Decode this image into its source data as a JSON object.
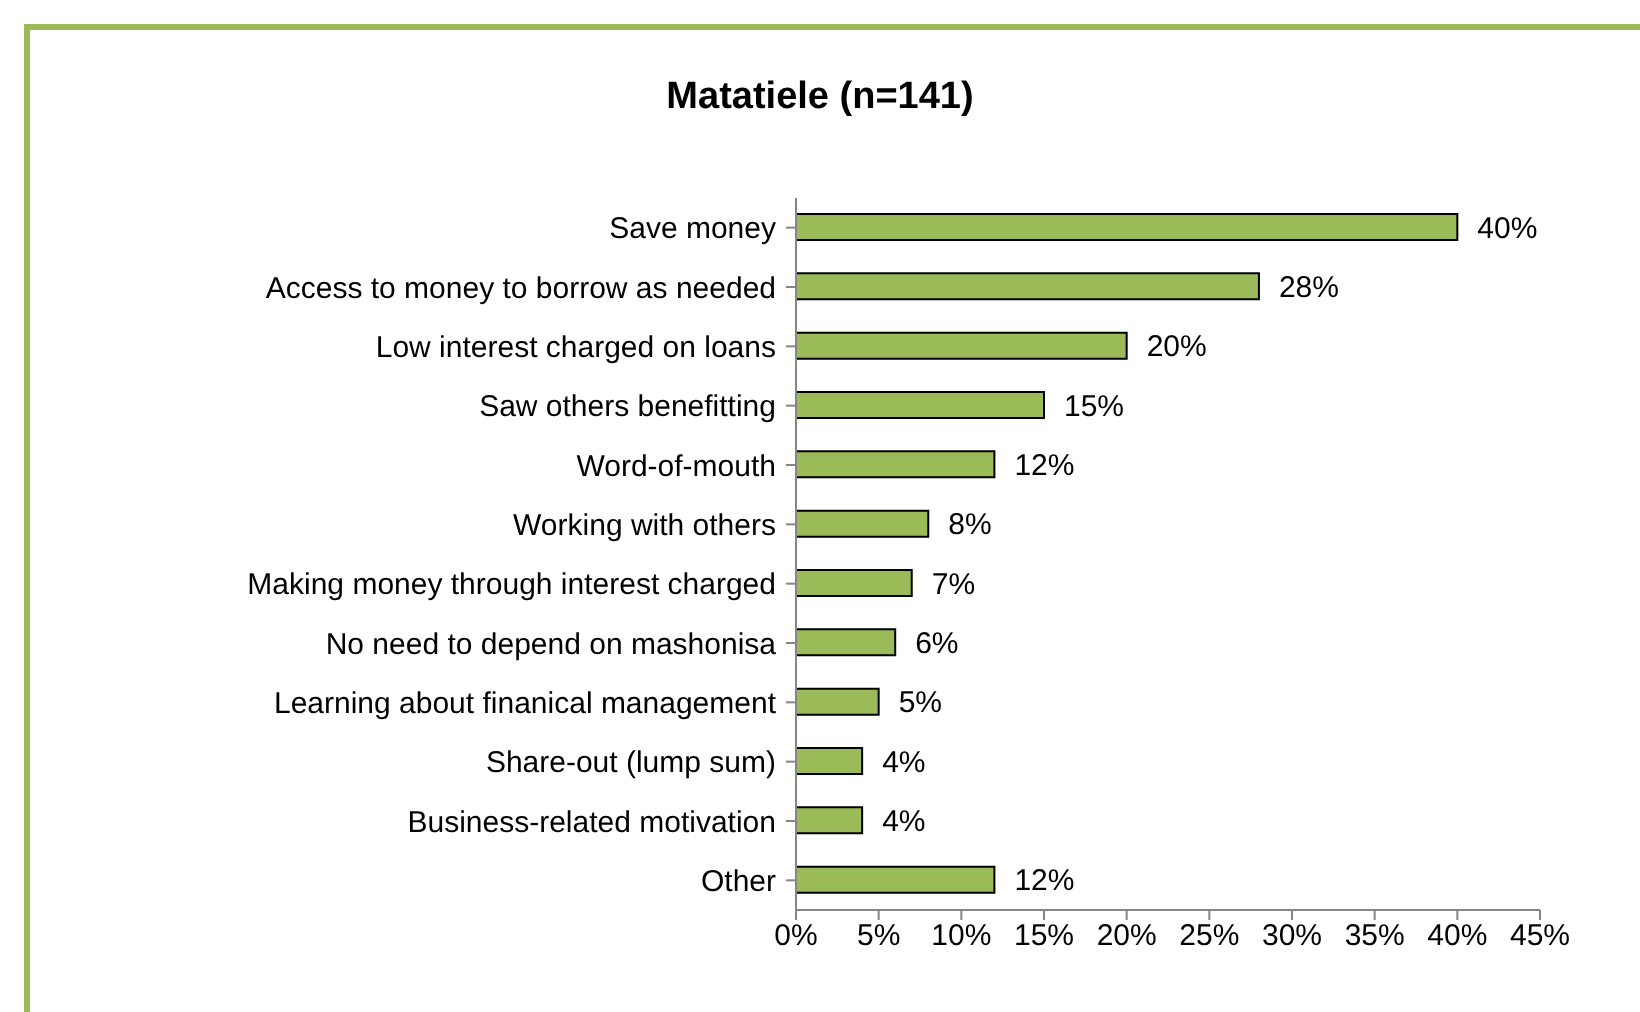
{
  "chart_data": {
    "type": "bar",
    "orientation": "horizontal",
    "title": "Matatiele (n=141)",
    "categories": [
      "Save money",
      "Access to money to borrow as needed",
      "Low interest charged on loans",
      "Saw others benefitting",
      "Word-of-mouth",
      "Working with others",
      "Making money through interest charged",
      "No need to depend on mashonisa",
      "Learning about finanical management",
      "Share-out (lump sum)",
      "Business-related motivation",
      "Other"
    ],
    "values": [
      40,
      28,
      20,
      15,
      12,
      8,
      7,
      6,
      5,
      4,
      4,
      12
    ],
    "value_labels": [
      "40%",
      "28%",
      "20%",
      "15%",
      "12%",
      "8%",
      "7%",
      "6%",
      "5%",
      "4%",
      "4%",
      "12%"
    ],
    "color": "#9bbb59",
    "xlim": [
      0,
      45
    ],
    "xticks": [
      {
        "value": 0,
        "label": "0%"
      },
      {
        "value": 5,
        "label": "5%"
      },
      {
        "value": 10,
        "label": "10%"
      },
      {
        "value": 15,
        "label": "15%"
      },
      {
        "value": 20,
        "label": "20%"
      },
      {
        "value": 25,
        "label": "25%"
      },
      {
        "value": 30,
        "label": "30%"
      },
      {
        "value": 35,
        "label": "35%"
      },
      {
        "value": 40,
        "label": "40%"
      },
      {
        "value": 45,
        "label": "45%"
      }
    ],
    "grid": false,
    "legend": false
  }
}
